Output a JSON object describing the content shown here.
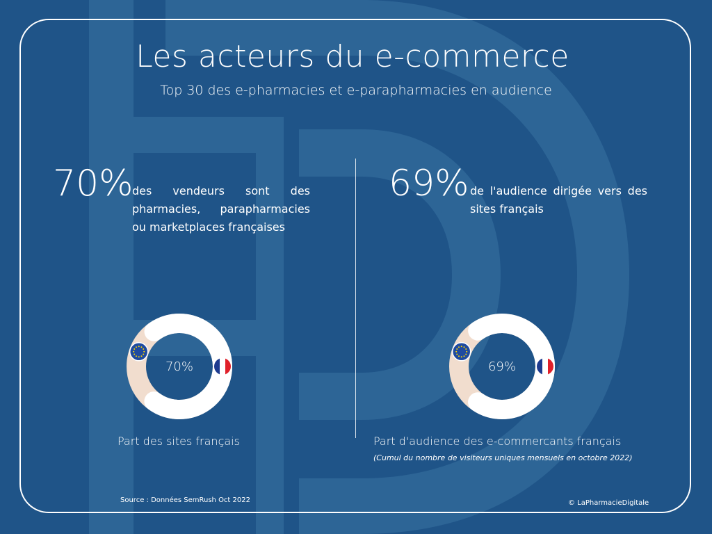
{
  "header": {
    "title": "Les acteurs du e-commerce",
    "subtitle": "Top 30 des e-pharmacies et e-parapharmacies en audience"
  },
  "stats": [
    {
      "value": "70%",
      "description": "des vendeurs sont des pharmacies, parapharmacies ou marketplaces françaises"
    },
    {
      "value": "69%",
      "description": "de l'audience dirigée vers des sites français"
    }
  ],
  "chart_data": [
    {
      "type": "pie",
      "variant": "donut",
      "center_label": "70%",
      "title": "Part des sites français",
      "categories": [
        "France",
        "Union européenne"
      ],
      "values": [
        70,
        30
      ],
      "icons": [
        "france-flag-icon",
        "eu-flag-icon"
      ],
      "colors": {
        "france": "#ffffff",
        "eu": "#f1ddce"
      }
    },
    {
      "type": "pie",
      "variant": "donut",
      "center_label": "69%",
      "title": "Part d'audience des e-commercants français",
      "note": "(Cumul du nombre de visiteurs uniques mensuels en octobre 2022)",
      "categories": [
        "France",
        "Union européenne"
      ],
      "values": [
        69,
        31
      ],
      "icons": [
        "france-flag-icon",
        "eu-flag-icon"
      ],
      "colors": {
        "france": "#ffffff",
        "eu": "#f1ddce"
      }
    }
  ],
  "footer": {
    "source": "Source : Données SemRush Oct 2022",
    "copyright": "© LaPharmacieDigitale"
  },
  "colors": {
    "background": "#1f5488",
    "logo_watermark": "#2d6596",
    "donut_french": "#ffffff",
    "donut_eu": "#f1ddce",
    "eu_blue": "#1f4aa0",
    "flag_red": "#e0202a",
    "flag_blue": "#1d3b8f"
  }
}
